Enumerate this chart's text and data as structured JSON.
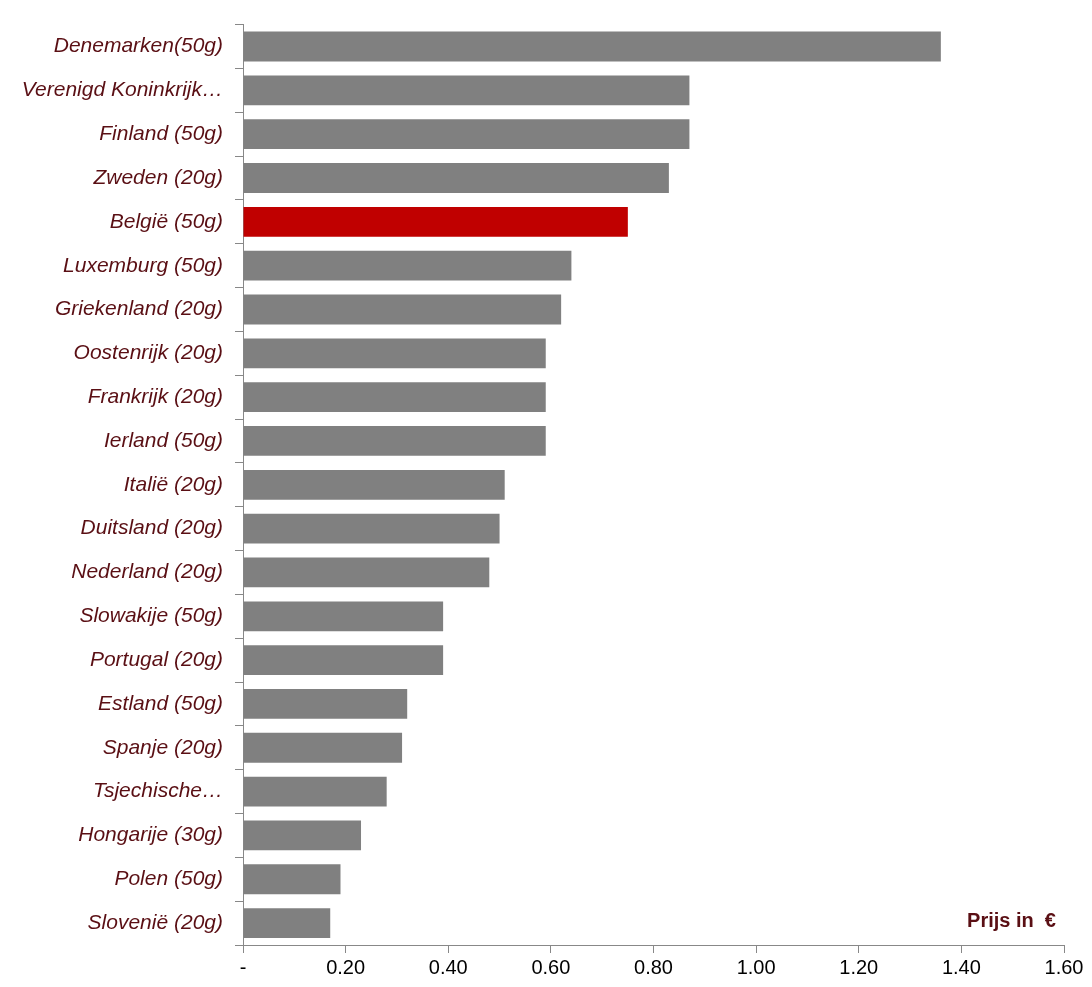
{
  "chart_data": {
    "type": "bar",
    "orientation": "horizontal",
    "xlabel": "Prijs in  €",
    "categories": [
      "Denemarken(50g)",
      "Verenigd Koninkrijk…",
      "Finland (50g)",
      "Zweden (20g)",
      "België (50g)",
      "Luxemburg (50g)",
      "Griekenland (20g)",
      "Oostenrijk (20g)",
      "Frankrijk (20g)",
      "Ierland (50g)",
      "Italië (20g)",
      "Duitsland (20g)",
      "Nederland (20g)",
      "Slowakije (50g)",
      "Portugal (20g)",
      "Estland (50g)",
      "Spanje (20g)",
      "Tsjechische…",
      "Hongarije (30g)",
      "Polen (50g)",
      "Slovenië (20g)"
    ],
    "values": [
      1.36,
      0.87,
      0.87,
      0.83,
      0.75,
      0.64,
      0.62,
      0.59,
      0.59,
      0.59,
      0.51,
      0.5,
      0.48,
      0.39,
      0.39,
      0.32,
      0.31,
      0.28,
      0.23,
      0.19,
      0.17
    ],
    "colors": [
      "#808080",
      "#808080",
      "#808080",
      "#808080",
      "#c00000",
      "#808080",
      "#808080",
      "#808080",
      "#808080",
      "#808080",
      "#808080",
      "#808080",
      "#808080",
      "#808080",
      "#808080",
      "#808080",
      "#808080",
      "#808080",
      "#808080",
      "#808080",
      "#808080"
    ],
    "xlim": [
      0,
      1.6
    ],
    "xticks": [
      {
        "value": 0,
        "label": "-"
      },
      {
        "value": 0.2,
        "label": "0.20"
      },
      {
        "value": 0.4,
        "label": "0.40"
      },
      {
        "value": 0.6,
        "label": "0.60"
      },
      {
        "value": 0.8,
        "label": "0.80"
      },
      {
        "value": 1,
        "label": "1.00"
      },
      {
        "value": 1.2,
        "label": "1.20"
      },
      {
        "value": 1.4,
        "label": "1.40"
      },
      {
        "value": 1.6,
        "label": "1.60"
      }
    ],
    "grid": false,
    "legend": false
  }
}
